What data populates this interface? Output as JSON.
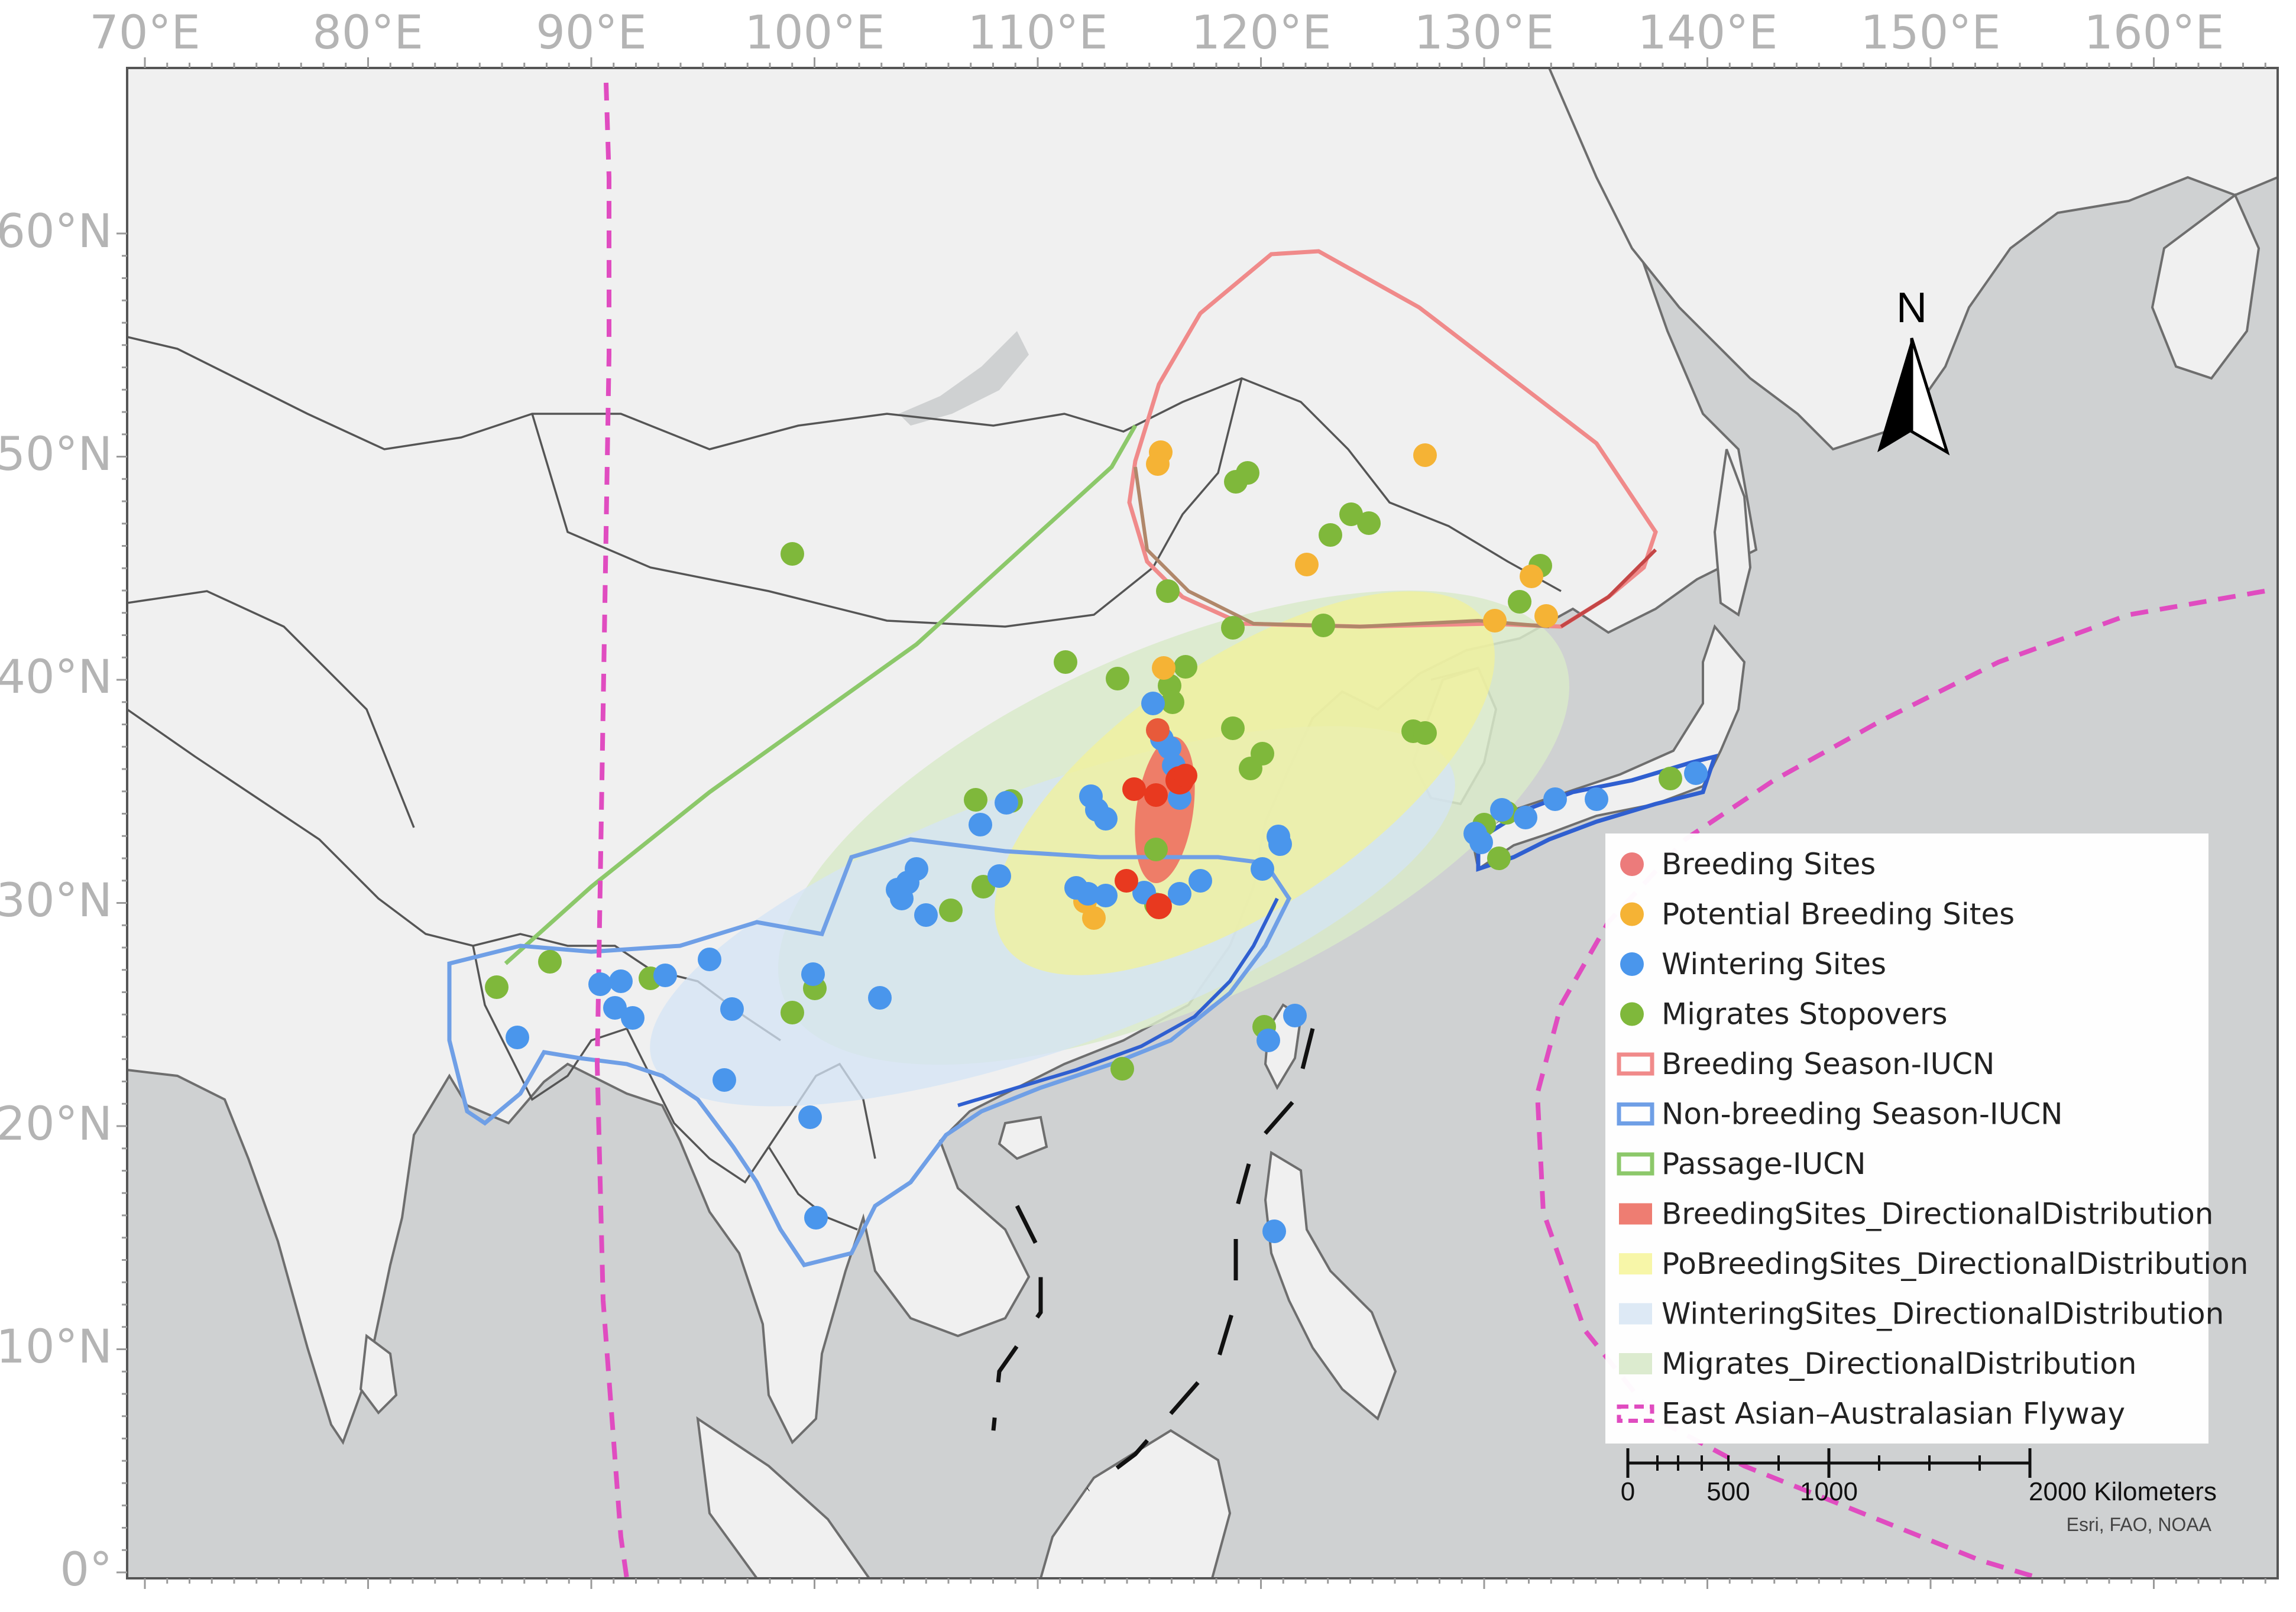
{
  "map": {
    "lon_labels": [
      "70°E",
      "80°E",
      "90°E",
      "100°E",
      "110°E",
      "120°E",
      "130°E",
      "140°E",
      "150°E",
      "160°E"
    ],
    "lat_labels": [
      "60°N",
      "50°N",
      "40°N",
      "30°N",
      "20°N",
      "10°N",
      "0°"
    ],
    "north_arrow": {
      "label": "N",
      "icon": "north-arrow-icon"
    },
    "scale_bar": {
      "ticks": [
        "0",
        "500",
        "1000",
        "2000 Kilometers"
      ]
    },
    "credits": "Esri, FAO, NOAA",
    "colors": {
      "land": "#f0f0f0",
      "sea": "#cfd1d2",
      "breeding": "#f08080",
      "potential_breeding": "#f5b335",
      "wintering": "#4a96ec",
      "stopover": "#7fb83b",
      "flyway": "#e04cc0",
      "iucn_breeding": "#f08a8a",
      "iucn_nonbreeding": "#6f9fe6",
      "iucn_passage": "#8cc86a"
    }
  },
  "legend": {
    "items": [
      {
        "label": "Breeding Sites",
        "symbol": "dot",
        "color": "#ec7b7b"
      },
      {
        "label": "Potential Breeding Sites",
        "symbol": "dot",
        "color": "#f5b335"
      },
      {
        "label": "Wintering Sites",
        "symbol": "dot",
        "color": "#4a96ec"
      },
      {
        "label": "Migrates Stopovers",
        "symbol": "dot",
        "color": "#7fb83b"
      },
      {
        "label": "Breeding Season-IUCN",
        "symbol": "outline",
        "color": "#f08a8a"
      },
      {
        "label": "Non-breeding Season-IUCN",
        "symbol": "outline",
        "color": "#6f9fe6"
      },
      {
        "label": "Passage-IUCN",
        "symbol": "outline",
        "color": "#8cc86a"
      },
      {
        "label": "BreedingSites_DirectionalDistribution",
        "symbol": "fill",
        "color": "#ee7d72"
      },
      {
        "label": "PoBreedingSites_DirectionalDistribution",
        "symbol": "fill",
        "color": "#f7f6a8"
      },
      {
        "label": "WinteringSites_DirectionalDistribution",
        "symbol": "fill",
        "color": "#dde9f5"
      },
      {
        "label": "Migrates_DirectionalDistribution",
        "symbol": "fill",
        "color": "#dcebcf"
      },
      {
        "label": "East Asian–Australasian Flyway",
        "symbol": "dash",
        "color": "#e04cc0"
      }
    ]
  }
}
